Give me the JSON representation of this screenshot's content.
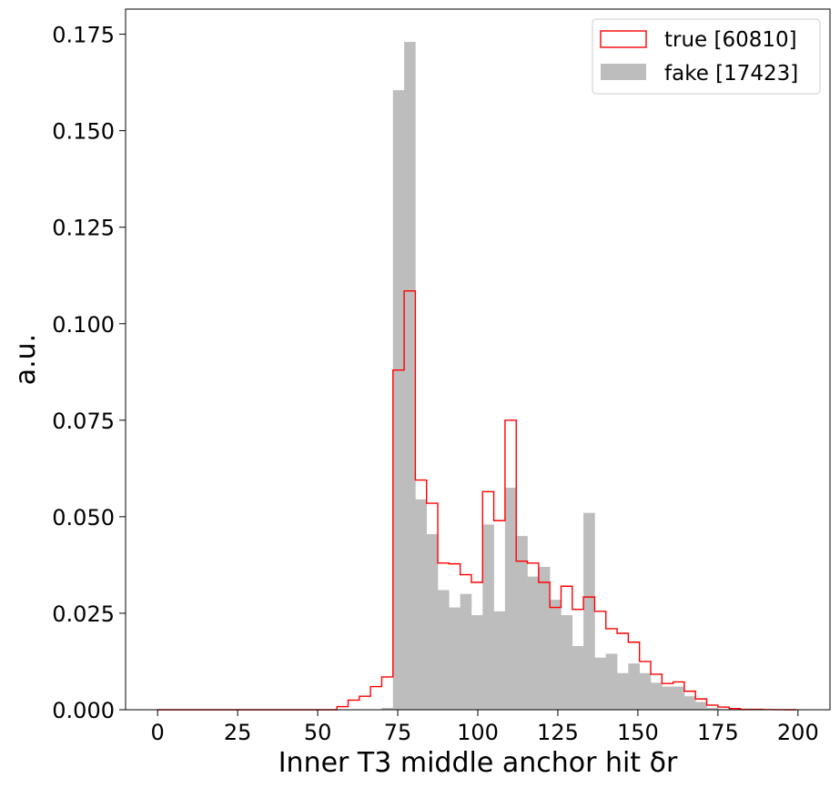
{
  "chart_data": {
    "type": "histogram",
    "xlabel": "Inner T3 middle anchor hit δr",
    "ylabel": "a.u.",
    "xlim": [
      -10,
      210
    ],
    "ylim": [
      0,
      0.1815
    ],
    "x_ticks": [
      0,
      25,
      50,
      75,
      100,
      125,
      150,
      175,
      200
    ],
    "y_ticks": [
      0,
      0.025,
      0.05,
      0.075,
      0.1,
      0.125,
      0.15,
      0.175
    ],
    "bin_edges": [
      0,
      3.5,
      7,
      10.5,
      14,
      17.5,
      21,
      24.5,
      28,
      31.5,
      35,
      38.5,
      42,
      45.5,
      49,
      52.5,
      56,
      59.5,
      63,
      66.5,
      70,
      73.5,
      77,
      80.5,
      84,
      87.5,
      91,
      94.5,
      98,
      101.5,
      105,
      108.5,
      112,
      115.5,
      119,
      122.5,
      126,
      129.5,
      133,
      136.5,
      140,
      143.5,
      147,
      150.5,
      154,
      157.5,
      161,
      164.5,
      168,
      171.5,
      175,
      178.5,
      182,
      185.5,
      189,
      192.5,
      196,
      199.5
    ],
    "legend_position": "upper right",
    "series": [
      {
        "name": "true [60810]",
        "style": "step",
        "color": "#ff0000",
        "values": [
          0,
          0,
          0,
          0,
          0,
          0,
          0,
          0,
          0,
          0,
          0,
          0,
          0,
          0,
          0,
          0,
          0.0008,
          0.0025,
          0.0035,
          0.006,
          0.0085,
          0.088,
          0.1085,
          0.0595,
          0.0535,
          0.038,
          0.0378,
          0.035,
          0.033,
          0.0565,
          0.049,
          0.075,
          0.0385,
          0.038,
          0.033,
          0.0265,
          0.032,
          0.026,
          0.0292,
          0.0255,
          0.021,
          0.0198,
          0.0175,
          0.0125,
          0.0092,
          0.0068,
          0.0072,
          0.0048,
          0.0028,
          0.0012,
          0.0007,
          0.0003,
          0.0001,
          0.0001,
          5e-05,
          2e-05,
          0
        ]
      },
      {
        "name": "fake [17423]",
        "style": "bar",
        "color": "#bdbdbd",
        "values": [
          0,
          0,
          0,
          0,
          0,
          0,
          0,
          0,
          0,
          0,
          0,
          0,
          0,
          0,
          0,
          0,
          0,
          0,
          0,
          0,
          0.0005,
          0.1605,
          0.173,
          0.0545,
          0.0455,
          0.031,
          0.0265,
          0.03,
          0.0245,
          0.048,
          0.0255,
          0.0575,
          0.045,
          0.0345,
          0.037,
          0.0285,
          0.0245,
          0.0165,
          0.051,
          0.0135,
          0.0145,
          0.0095,
          0.012,
          0.0095,
          0.007,
          0.006,
          0.006,
          0.0035,
          0.002,
          0.0005,
          0.0002,
          0,
          0,
          0,
          0,
          0,
          0
        ]
      }
    ]
  }
}
